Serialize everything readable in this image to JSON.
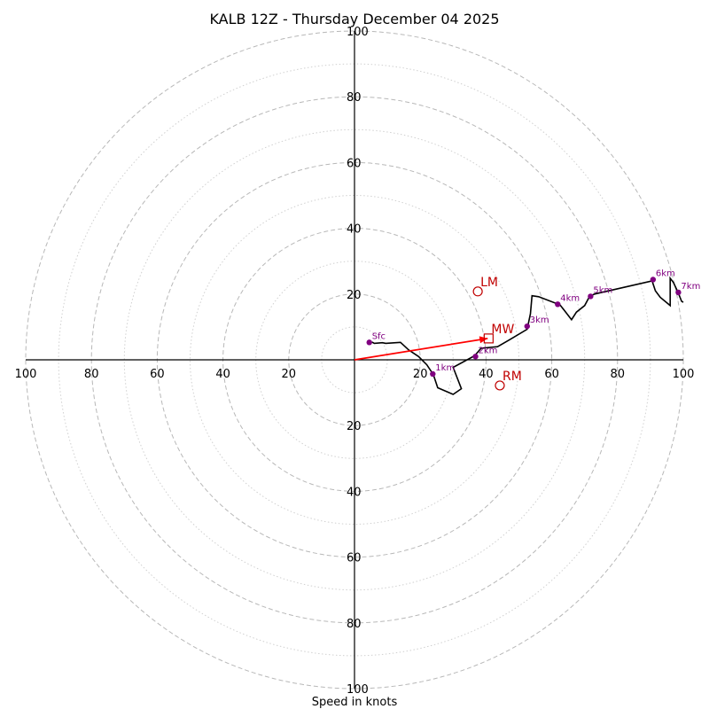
{
  "chart_data": {
    "type": "hodograph",
    "title": "KALB 12Z - Thursday December 04 2025",
    "xlabel": "Speed in knots",
    "max_speed": 100,
    "major_rings": [
      20,
      40,
      60,
      80,
      100
    ],
    "minor_rings": [
      10,
      30,
      50,
      70,
      90
    ],
    "tick_labels": [
      "100",
      "80",
      "60",
      "40",
      "20",
      "20",
      "40",
      "60",
      "80",
      "100"
    ],
    "tick_values": [
      -100,
      -80,
      -60,
      -40,
      -20,
      20,
      40,
      60,
      80,
      100
    ],
    "hodograph": [
      [
        4.5,
        5.3
      ],
      [
        5.5,
        5.3
      ],
      [
        6.0,
        5.0
      ],
      [
        8.5,
        5.2
      ],
      [
        9.5,
        5.0
      ],
      [
        14.0,
        5.3
      ],
      [
        16.5,
        3.0
      ],
      [
        19.5,
        1.0
      ],
      [
        22.0,
        -1.5
      ],
      [
        24.0,
        -4.5
      ],
      [
        25.3,
        -8.5
      ],
      [
        30.0,
        -10.5
      ],
      [
        32.5,
        -8.8
      ],
      [
        30.0,
        -2.3
      ],
      [
        36.5,
        1.2
      ],
      [
        38.5,
        3.5
      ],
      [
        43.5,
        4.0
      ],
      [
        47.0,
        6.0
      ],
      [
        52.5,
        9.3
      ],
      [
        53.5,
        14.0
      ],
      [
        54.0,
        19.5
      ],
      [
        56.0,
        19.2
      ],
      [
        62.5,
        16.7
      ],
      [
        66.0,
        12.2
      ],
      [
        67.5,
        14.5
      ],
      [
        70.0,
        16.5
      ],
      [
        71.5,
        19.3
      ],
      [
        73.0,
        20.0
      ],
      [
        90.5,
        24.0
      ],
      [
        91.5,
        21.0
      ],
      [
        93.0,
        19.0
      ],
      [
        96.0,
        16.5
      ],
      [
        96.0,
        24.8
      ],
      [
        97.0,
        23.5
      ],
      [
        98.5,
        20.3
      ],
      [
        99.5,
        17.8
      ],
      [
        100.0,
        17.5
      ]
    ],
    "height_markers": [
      {
        "label": "Sfc",
        "u": 4.5,
        "v": 5.3
      },
      {
        "label": "1km",
        "u": 23.8,
        "v": -4.3
      },
      {
        "label": "2km",
        "u": 36.8,
        "v": 1.0
      },
      {
        "label": "3km",
        "u": 52.5,
        "v": 10.2
      },
      {
        "label": "4km",
        "u": 61.8,
        "v": 16.9
      },
      {
        "label": "5km",
        "u": 71.8,
        "v": 19.3
      },
      {
        "label": "6km",
        "u": 90.8,
        "v": 24.4
      },
      {
        "label": "7km",
        "u": 98.5,
        "v": 20.5
      }
    ],
    "storm_motion": [
      {
        "label": "LM",
        "u": 37.5,
        "v": 20.8,
        "shape": "circle"
      },
      {
        "label": "MW",
        "u": 40.8,
        "v": 6.5,
        "shape": "square"
      },
      {
        "label": "RM",
        "u": 44.2,
        "v": -7.8,
        "shape": "circle"
      }
    ],
    "shear_vector": {
      "u": 40.5,
      "v": 6.5
    }
  },
  "colors": {
    "hodograph": "#000000",
    "height_marker": "#800080",
    "storm_motion": "#c00000",
    "shear_vector": "#ff0000"
  }
}
